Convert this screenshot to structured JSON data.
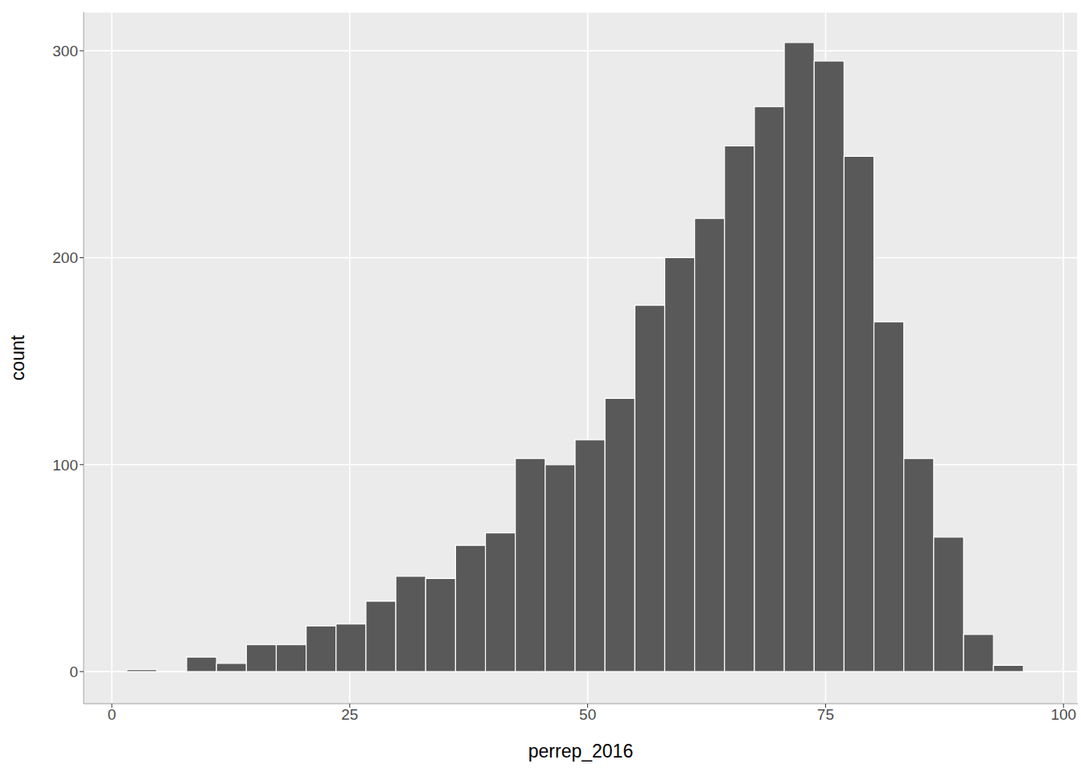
{
  "chart_data": {
    "type": "histogram",
    "x_label": "perrep_2016",
    "y_label": "count",
    "bins": [
      1.58,
      4.72,
      7.86,
      11.0,
      14.14,
      17.28,
      20.42,
      23.56,
      26.7,
      29.84,
      32.98,
      36.12,
      39.26,
      42.4,
      45.54,
      48.68,
      51.82,
      54.96,
      58.1,
      61.24,
      64.38,
      67.52,
      70.66,
      73.8,
      76.94,
      80.08,
      83.22,
      86.36,
      89.5,
      92.64,
      95.78
    ],
    "counts": [
      1,
      0,
      7,
      4,
      13,
      13,
      22,
      23,
      34,
      46,
      45,
      61,
      67,
      103,
      100,
      112,
      132,
      177,
      200,
      219,
      254,
      273,
      304,
      295,
      249,
      169,
      103,
      65,
      18,
      3
    ],
    "color": "#595959",
    "xlim": [
      -2.96,
      101.5
    ],
    "ylim": [
      -15.5,
      318.7
    ],
    "xticks": [
      0,
      25,
      50,
      75,
      100
    ],
    "yticks": [
      0,
      100,
      200,
      300
    ],
    "grid": true
  }
}
